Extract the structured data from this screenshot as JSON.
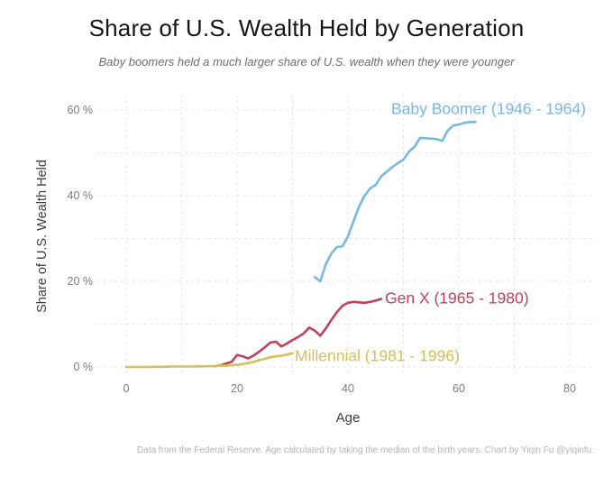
{
  "header": {
    "title": "Share of U.S. Wealth Held by Generation",
    "subtitle": "Baby boomers held a much larger share of U.S. wealth when they were younger"
  },
  "footer": {
    "credit": "Data from the Federal Reserve. Age calculated by taking the median of the birth years. Chart by Yiqin Fu @yiqinfu."
  },
  "colors": {
    "baby_boomer": "#7ab8e0",
    "gen_x": "#b6455b",
    "millennial": "#d3c05c",
    "gridline": "#e2e2e2",
    "axis_text": "#7c7c7c"
  },
  "chart_data": {
    "type": "line",
    "title": "Share of U.S. Wealth Held by Generation",
    "subtitle": "Baby boomers held a much larger share of U.S. wealth when they were younger",
    "xlabel": "Age",
    "ylabel": "Share of U.S. Wealth Held",
    "xlim": [
      0,
      80
    ],
    "ylim": [
      0,
      60
    ],
    "grid": {
      "shown": true,
      "style": "dashed",
      "x_step": 10,
      "y_step": 10
    },
    "legend_position": "inline-labels-at-line-ends",
    "x_axis": {
      "tick_values": [
        0,
        20,
        40,
        60,
        80
      ],
      "tick_labels": [
        "0",
        "20",
        "40",
        "60",
        "80"
      ]
    },
    "y_axis": {
      "tick_values": [
        0,
        20,
        40,
        60
      ],
      "tick_labels": [
        "0 %",
        "20 %",
        "40 %",
        "60 %"
      ]
    },
    "series": [
      {
        "name": "Baby Boomer (1946 - 1964)",
        "color": "#7ab8e0",
        "x": [
          34,
          35,
          36,
          37,
          38,
          39,
          40,
          41,
          42,
          43,
          44,
          45,
          46,
          47,
          48,
          49,
          50,
          51,
          52,
          53,
          54,
          55,
          56,
          57,
          58,
          59,
          60,
          61,
          62,
          63
        ],
        "values": [
          21.0,
          20.0,
          24.0,
          26.5,
          28.0,
          28.2,
          30.5,
          34.0,
          37.5,
          40.0,
          41.7,
          42.5,
          44.5,
          45.6,
          46.7,
          47.6,
          48.4,
          50.3,
          51.4,
          53.5,
          53.4,
          53.3,
          53.2,
          52.8,
          55.2,
          56.4,
          56.6,
          57.0,
          57.2,
          57.2
        ]
      },
      {
        "name": "Gen X (1965 - 1980)",
        "color": "#b6455b",
        "x": [
          16,
          17,
          18,
          19,
          20,
          21,
          22,
          23,
          24,
          25,
          26,
          27,
          28,
          29,
          30,
          31,
          32,
          33,
          34,
          35,
          36,
          37,
          38,
          39,
          40,
          41,
          42,
          43,
          44,
          45,
          46
        ],
        "values": [
          0.2,
          0.4,
          0.8,
          1.2,
          2.8,
          2.5,
          2.0,
          2.7,
          3.6,
          4.6,
          5.7,
          5.9,
          4.8,
          5.5,
          6.3,
          7.0,
          7.8,
          9.2,
          8.5,
          7.3,
          9.0,
          11.0,
          12.8,
          14.3,
          15.0,
          15.2,
          15.1,
          15.0,
          15.2,
          15.5,
          15.9
        ]
      },
      {
        "name": "Millennial (1981 - 1996)",
        "color": "#d3c05c",
        "x": [
          0,
          1,
          2,
          3,
          4,
          5,
          6,
          7,
          8,
          9,
          10,
          11,
          12,
          13,
          14,
          15,
          16,
          17,
          18,
          19,
          20,
          21,
          22,
          23,
          24,
          25,
          26,
          27,
          28,
          29,
          30
        ],
        "values": [
          0,
          0,
          0,
          0,
          0,
          0.05,
          0.05,
          0.05,
          0.1,
          0.1,
          0.1,
          0.1,
          0.1,
          0.15,
          0.15,
          0.2,
          0.2,
          0.3,
          0.3,
          0.4,
          0.5,
          0.7,
          0.9,
          1.2,
          1.6,
          1.9,
          2.3,
          2.5,
          2.6,
          2.9,
          3.2
        ]
      }
    ]
  }
}
